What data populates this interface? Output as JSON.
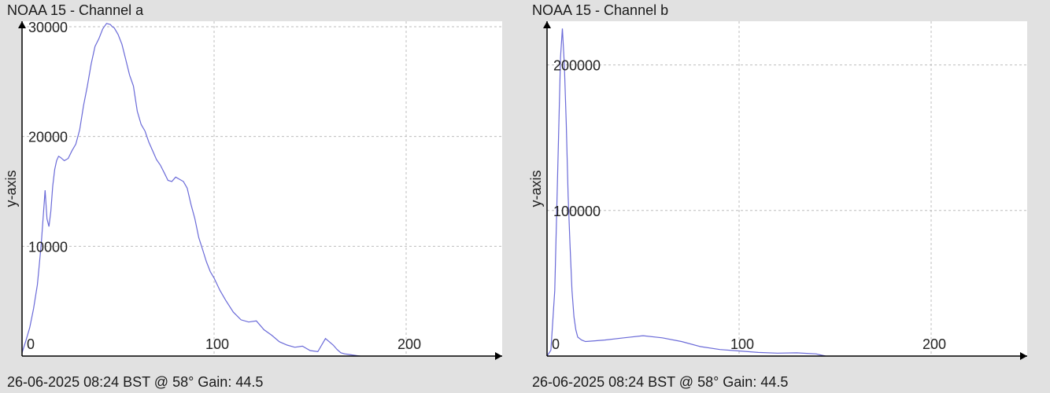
{
  "chart_data": [
    {
      "type": "line",
      "title": "NOAA 15 - Channel a",
      "footer": "26-06-2025 08:24 BST @ 58° Gain: 44.5",
      "ylabel": "y-axis",
      "xlabel": "",
      "xlim": [
        0,
        250
      ],
      "ylim": [
        0,
        30500
      ],
      "x_ticks": [
        0,
        100,
        200
      ],
      "y_ticks": [
        10000,
        20000,
        30000
      ],
      "grid": true,
      "line_color": "#6a6ad8",
      "series": [
        {
          "x": [
            0,
            2,
            4,
            6,
            8,
            10,
            12,
            13,
            14,
            15,
            16,
            17,
            18,
            19,
            20,
            22,
            24,
            26,
            28,
            30,
            32,
            34,
            36,
            38,
            40,
            42,
            44,
            46,
            47,
            48,
            50,
            52,
            54,
            56,
            58,
            60,
            62,
            64,
            66,
            68,
            70,
            72,
            74,
            76,
            78,
            80,
            82,
            84,
            86,
            88,
            90,
            92,
            94,
            96,
            98,
            100,
            103,
            106,
            110,
            114,
            118,
            122,
            126,
            130,
            134,
            138,
            142,
            146,
            150,
            154,
            158,
            162,
            164,
            166,
            168,
            170,
            172,
            174,
            176
          ],
          "y": [
            300,
            1400,
            2600,
            4300,
            6500,
            10200,
            15100,
            12500,
            11800,
            13200,
            15500,
            17000,
            17800,
            18200,
            18100,
            17800,
            18000,
            18700,
            19300,
            20600,
            22800,
            24600,
            26600,
            28200,
            28900,
            29800,
            30300,
            30200,
            30000,
            29900,
            29300,
            28400,
            27000,
            25600,
            24600,
            22300,
            21100,
            20500,
            19500,
            18700,
            17900,
            17400,
            16700,
            16000,
            15900,
            16300,
            16100,
            15900,
            15300,
            13800,
            12500,
            10800,
            9700,
            8600,
            7700,
            7100,
            6000,
            5100,
            4000,
            3300,
            3100,
            3200,
            2400,
            1900,
            1300,
            1000,
            800,
            900,
            500,
            400,
            1600,
            1000,
            600,
            300,
            200,
            150,
            100,
            50,
            0
          ]
        }
      ]
    },
    {
      "type": "line",
      "title": "NOAA 15 - Channel b",
      "footer": "26-06-2025 08:24 BST @ 58° Gain: 44.5",
      "ylabel": "y-axis",
      "xlabel": "",
      "xlim": [
        0,
        250
      ],
      "ylim": [
        0,
        230000
      ],
      "x_ticks": [
        0,
        100,
        200
      ],
      "y_ticks": [
        100000,
        200000
      ],
      "grid": true,
      "line_color": "#6a6ad8",
      "series": [
        {
          "x": [
            0,
            2,
            4,
            6,
            7,
            8,
            9,
            10,
            11,
            12,
            13,
            14,
            15,
            16,
            18,
            20,
            25,
            30,
            40,
            50,
            60,
            70,
            80,
            90,
            100,
            110,
            120,
            130,
            140,
            145
          ],
          "y": [
            0,
            4000,
            45000,
            150000,
            205000,
            225000,
            200000,
            160000,
            110000,
            75000,
            45000,
            27000,
            18000,
            13000,
            11000,
            10000,
            10500,
            11000,
            12500,
            14000,
            12500,
            10000,
            6500,
            4500,
            3500,
            2500,
            2000,
            2200,
            1500,
            0
          ]
        }
      ]
    }
  ]
}
